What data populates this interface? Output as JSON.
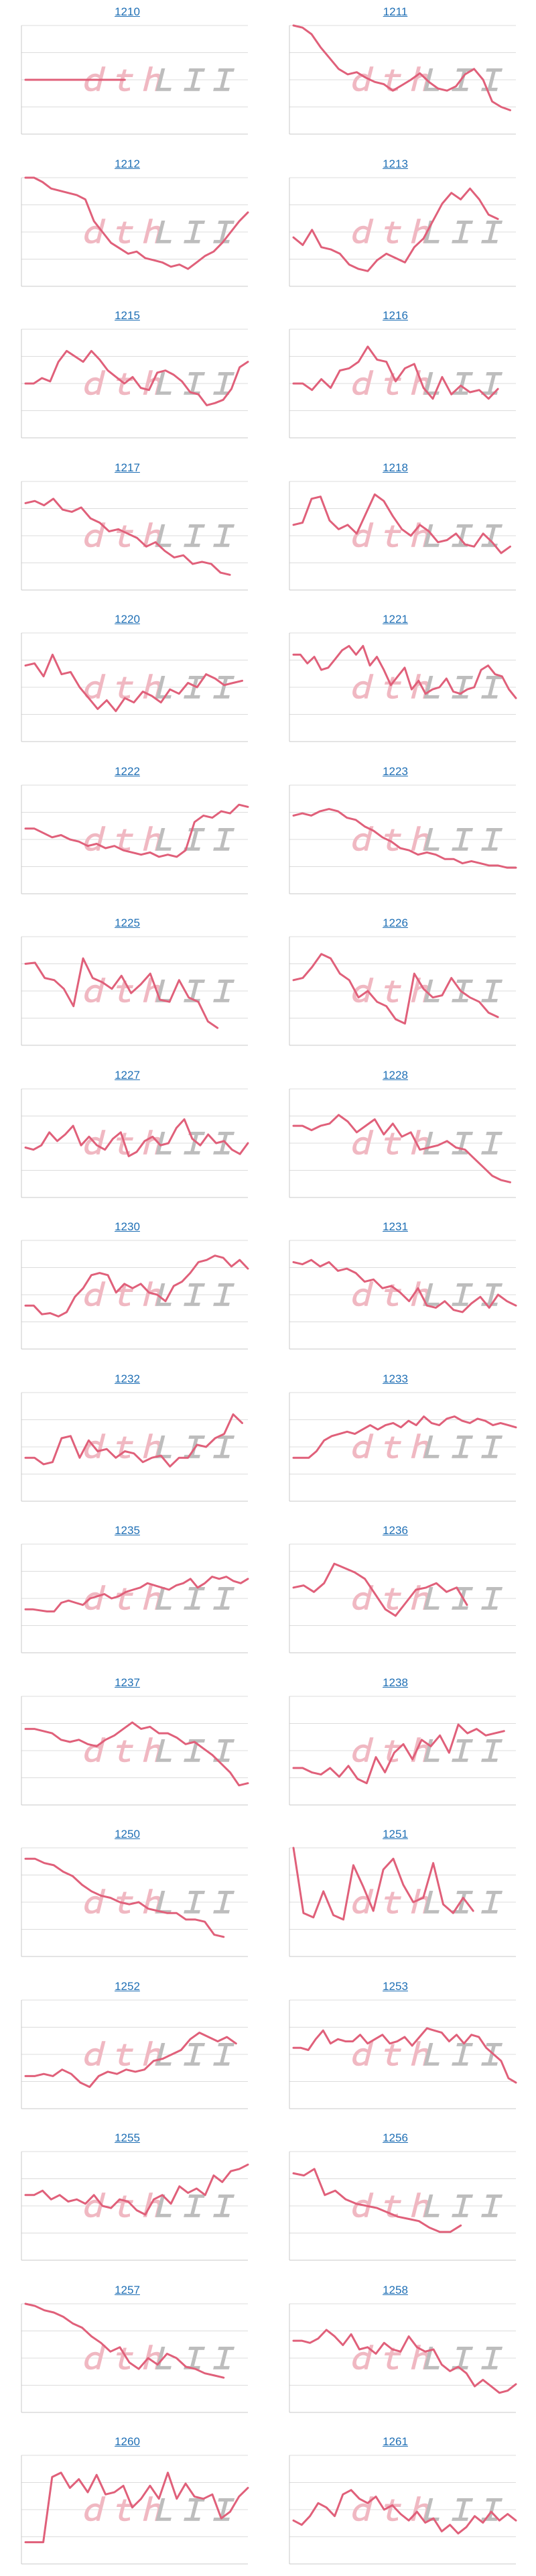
{
  "style": {
    "line_color": "#e0607a",
    "grid_color": "#dcdcdc",
    "axis_color": "#c8c8c8",
    "title_color": "#1f6fb5",
    "watermark_left_color": "#f0b8c2",
    "watermark_right_color": "#bdbdbd"
  },
  "watermark": {
    "left": "ｄｔｈ",
    "right": "ＬＩＩ"
  },
  "chart_data": [
    {
      "type": "line",
      "title": "1210",
      "grid": true,
      "ylim": [
        0,
        100
      ],
      "values": [
        50,
        50,
        50,
        50,
        50,
        50
      ]
    },
    {
      "type": "line",
      "title": "1211",
      "grid": true,
      "ylim": [
        0,
        100
      ],
      "values": [
        100,
        98,
        92,
        80,
        70,
        60,
        55,
        57,
        52,
        48,
        46,
        40,
        45,
        50,
        56,
        48,
        42,
        40,
        44,
        55,
        60,
        50,
        30,
        25,
        22
      ]
    },
    {
      "type": "line",
      "title": "1212",
      "grid": true,
      "ylim": [
        0,
        100
      ],
      "values": [
        100,
        100,
        96,
        90,
        88,
        86,
        84,
        80,
        60,
        50,
        40,
        35,
        30,
        32,
        26,
        24,
        22,
        18,
        20,
        16,
        22,
        28,
        32,
        40,
        50,
        60,
        68
      ]
    },
    {
      "type": "line",
      "title": "1213",
      "grid": true,
      "ylim": [
        0,
        100
      ],
      "values": [
        45,
        38,
        52,
        36,
        34,
        30,
        20,
        16,
        14,
        24,
        30,
        26,
        22,
        36,
        44,
        60,
        76,
        86,
        80,
        90,
        80,
        66,
        62
      ]
    },
    {
      "type": "line",
      "title": "1215",
      "grid": true,
      "ylim": [
        0,
        100
      ],
      "values": [
        50,
        50,
        55,
        52,
        70,
        80,
        75,
        70,
        80,
        72,
        62,
        56,
        50,
        56,
        46,
        44,
        60,
        62,
        58,
        52,
        42,
        40,
        30,
        32,
        35,
        45,
        65,
        70
      ]
    },
    {
      "type": "line",
      "title": "1216",
      "grid": true,
      "ylim": [
        0,
        100
      ],
      "values": [
        50,
        50,
        44,
        54,
        46,
        62,
        64,
        70,
        84,
        72,
        70,
        52,
        64,
        68,
        46,
        36,
        56,
        40,
        48,
        42,
        44,
        36,
        45
      ]
    },
    {
      "type": "line",
      "title": "1217",
      "grid": true,
      "ylim": [
        0,
        100
      ],
      "values": [
        80,
        82,
        78,
        84,
        74,
        72,
        76,
        66,
        62,
        54,
        56,
        52,
        48,
        40,
        44,
        36,
        30,
        32,
        24,
        26,
        24,
        16,
        14
      ]
    },
    {
      "type": "line",
      "title": "1218",
      "grid": true,
      "ylim": [
        0,
        100
      ],
      "values": [
        60,
        62,
        84,
        86,
        64,
        56,
        60,
        52,
        70,
        88,
        82,
        68,
        56,
        50,
        60,
        54,
        44,
        46,
        52,
        42,
        40,
        52,
        44,
        34,
        40
      ]
    },
    {
      "type": "line",
      "title": "1220",
      "grid": true,
      "ylim": [
        0,
        100
      ],
      "values": [
        70,
        72,
        60,
        80,
        62,
        64,
        50,
        40,
        30,
        38,
        28,
        40,
        36,
        46,
        42,
        36,
        48,
        44,
        54,
        50,
        62,
        58,
        52,
        54,
        56
      ]
    },
    {
      "type": "line",
      "title": "1221",
      "grid": true,
      "ylim": [
        0,
        100
      ],
      "values": [
        80,
        80,
        72,
        78,
        66,
        68,
        76,
        84,
        88,
        80,
        88,
        70,
        78,
        66,
        52,
        60,
        68,
        48,
        56,
        44,
        48,
        50,
        58,
        46,
        44,
        48,
        50,
        66,
        70,
        62,
        60,
        48,
        40
      ]
    },
    {
      "type": "line",
      "title": "1222",
      "grid": true,
      "ylim": [
        0,
        100
      ],
      "values": [
        60,
        60,
        56,
        52,
        54,
        50,
        48,
        44,
        46,
        42,
        44,
        40,
        38,
        36,
        38,
        34,
        36,
        34,
        40,
        66,
        72,
        70,
        76,
        74,
        82,
        80
      ]
    },
    {
      "type": "line",
      "title": "1223",
      "grid": true,
      "ylim": [
        0,
        100
      ],
      "values": [
        72,
        74,
        72,
        76,
        78,
        76,
        70,
        68,
        62,
        58,
        52,
        48,
        42,
        40,
        36,
        38,
        36,
        32,
        32,
        28,
        30,
        28,
        26,
        26,
        24,
        24
      ]
    },
    {
      "type": "line",
      "title": "1225",
      "grid": true,
      "ylim": [
        0,
        100
      ],
      "values": [
        75,
        76,
        62,
        60,
        52,
        36,
        80,
        62,
        58,
        52,
        64,
        48,
        56,
        66,
        42,
        40,
        60,
        44,
        40,
        22,
        16
      ]
    },
    {
      "type": "line",
      "title": "1226",
      "grid": true,
      "ylim": [
        0,
        100
      ],
      "values": [
        60,
        62,
        72,
        84,
        80,
        66,
        60,
        44,
        50,
        40,
        36,
        24,
        20,
        66,
        52,
        44,
        46,
        62,
        50,
        44,
        40,
        30,
        26
      ]
    },
    {
      "type": "line",
      "title": "1227",
      "grid": true,
      "ylim": [
        0,
        100
      ],
      "values": [
        46,
        44,
        48,
        60,
        52,
        58,
        66,
        48,
        56,
        48,
        44,
        54,
        60,
        38,
        42,
        52,
        56,
        48,
        50,
        64,
        72,
        54,
        48,
        58,
        50,
        52,
        44,
        40,
        50
      ]
    },
    {
      "type": "line",
      "title": "1228",
      "grid": true,
      "ylim": [
        0,
        100
      ],
      "values": [
        66,
        66,
        62,
        66,
        68,
        76,
        70,
        60,
        66,
        72,
        58,
        68,
        56,
        60,
        44,
        46,
        48,
        52,
        46,
        44,
        36,
        28,
        20,
        16,
        14
      ]
    },
    {
      "type": "line",
      "title": "1230",
      "grid": true,
      "ylim": [
        0,
        100
      ],
      "values": [
        40,
        40,
        32,
        33,
        30,
        34,
        48,
        56,
        68,
        70,
        68,
        52,
        60,
        56,
        60,
        52,
        50,
        44,
        58,
        62,
        70,
        80,
        82,
        86,
        84,
        76,
        82,
        74
      ]
    },
    {
      "type": "line",
      "title": "1231",
      "grid": true,
      "ylim": [
        0,
        100
      ],
      "values": [
        80,
        78,
        82,
        76,
        80,
        72,
        74,
        70,
        62,
        64,
        56,
        58,
        52,
        44,
        56,
        40,
        38,
        44,
        36,
        34,
        42,
        48,
        38,
        50,
        44,
        40
      ]
    },
    {
      "type": "line",
      "title": "1232",
      "grid": true,
      "ylim": [
        0,
        100
      ],
      "values": [
        40,
        40,
        34,
        36,
        58,
        60,
        40,
        56,
        46,
        48,
        40,
        46,
        44,
        36,
        40,
        42,
        32,
        40,
        40,
        52,
        50,
        58,
        62,
        80,
        72
      ]
    },
    {
      "type": "line",
      "title": "1233",
      "grid": true,
      "ylim": [
        0,
        100
      ],
      "values": [
        40,
        40,
        40,
        46,
        56,
        60,
        62,
        64,
        62,
        66,
        70,
        66,
        70,
        72,
        68,
        74,
        70,
        78,
        72,
        70,
        76,
        78,
        74,
        72,
        76,
        74,
        70,
        72,
        70,
        68
      ]
    },
    {
      "type": "line",
      "title": "1235",
      "grid": true,
      "ylim": [
        0,
        100
      ],
      "values": [
        40,
        40,
        39,
        38,
        38,
        46,
        48,
        46,
        44,
        50,
        52,
        54,
        50,
        52,
        56,
        58,
        60,
        64,
        62,
        60,
        58,
        62,
        64,
        68,
        60,
        64,
        70,
        68,
        70,
        66,
        64,
        68
      ]
    },
    {
      "type": "line",
      "title": "1236",
      "grid": true,
      "ylim": [
        0,
        100
      ],
      "values": [
        60,
        62,
        56,
        64,
        82,
        78,
        74,
        68,
        54,
        40,
        34,
        46,
        58,
        60,
        64,
        56,
        60,
        44
      ]
    },
    {
      "type": "line",
      "title": "1237",
      "grid": true,
      "ylim": [
        0,
        100
      ],
      "values": [
        70,
        70,
        68,
        66,
        60,
        58,
        60,
        56,
        54,
        60,
        64,
        70,
        76,
        70,
        72,
        66,
        66,
        62,
        56,
        58,
        52,
        46,
        38,
        30,
        18,
        20
      ]
    },
    {
      "type": "line",
      "title": "1238",
      "grid": true,
      "ylim": [
        0,
        100
      ],
      "values": [
        34,
        34,
        30,
        28,
        34,
        26,
        36,
        24,
        20,
        44,
        30,
        48,
        56,
        42,
        60,
        54,
        64,
        48,
        74,
        66,
        70,
        64,
        66,
        68
      ]
    },
    {
      "type": "line",
      "title": "1250",
      "grid": true,
      "ylim": [
        0,
        100
      ],
      "values": [
        90,
        90,
        86,
        84,
        78,
        74,
        66,
        60,
        56,
        54,
        50,
        48,
        50,
        44,
        42,
        40,
        40,
        34,
        34,
        32,
        20,
        18
      ]
    },
    {
      "type": "line",
      "title": "1251",
      "grid": true,
      "ylim": [
        0,
        100
      ],
      "values": [
        100,
        40,
        36,
        60,
        38,
        34,
        84,
        64,
        42,
        80,
        90,
        66,
        50,
        54,
        86,
        48,
        40,
        54,
        42
      ]
    },
    {
      "type": "line",
      "title": "1252",
      "grid": true,
      "ylim": [
        0,
        100
      ],
      "values": [
        30,
        30,
        32,
        30,
        36,
        32,
        24,
        20,
        30,
        34,
        32,
        36,
        34,
        36,
        44,
        46,
        50,
        54,
        64,
        70,
        66,
        62,
        66,
        60
      ]
    },
    {
      "type": "line",
      "title": "1253",
      "grid": true,
      "ylim": [
        0,
        100
      ],
      "values": [
        56,
        56,
        54,
        64,
        72,
        60,
        64,
        62,
        62,
        68,
        60,
        64,
        68,
        60,
        62,
        66,
        58,
        66,
        74,
        72,
        70,
        62,
        68,
        60,
        68,
        66,
        56,
        50,
        44,
        28,
        24
      ]
    },
    {
      "type": "line",
      "title": "1255",
      "grid": true,
      "ylim": [
        0,
        100
      ],
      "values": [
        60,
        60,
        64,
        56,
        60,
        54,
        56,
        52,
        60,
        50,
        48,
        56,
        54,
        46,
        42,
        56,
        60,
        52,
        68,
        62,
        66,
        60,
        78,
        72,
        82,
        84,
        88
      ]
    },
    {
      "type": "line",
      "title": "1256",
      "grid": true,
      "ylim": [
        0,
        100
      ],
      "values": [
        80,
        78,
        84,
        60,
        64,
        56,
        52,
        50,
        48,
        44,
        40,
        38,
        36,
        30,
        26,
        26,
        32
      ]
    },
    {
      "type": "line",
      "title": "1257",
      "grid": true,
      "ylim": [
        0,
        100
      ],
      "values": [
        100,
        98,
        94,
        92,
        88,
        82,
        78,
        70,
        64,
        56,
        60,
        46,
        40,
        50,
        44,
        54,
        50,
        42,
        40,
        36,
        34,
        32
      ]
    },
    {
      "type": "line",
      "title": "1258",
      "grid": true,
      "ylim": [
        0,
        100
      ],
      "values": [
        66,
        66,
        64,
        68,
        76,
        70,
        62,
        72,
        58,
        60,
        54,
        64,
        58,
        56,
        70,
        60,
        56,
        58,
        44,
        38,
        42,
        36,
        24,
        30,
        24,
        18,
        20,
        26
      ]
    },
    {
      "type": "line",
      "title": "1260",
      "grid": true,
      "ylim": [
        0,
        100
      ],
      "values": [
        20,
        20,
        20,
        80,
        84,
        70,
        78,
        66,
        82,
        64,
        66,
        72,
        52,
        60,
        72,
        60,
        84,
        60,
        74,
        62,
        60,
        64,
        42,
        48,
        62,
        70
      ]
    },
    {
      "type": "line",
      "title": "1261",
      "grid": true,
      "ylim": [
        0,
        100
      ],
      "values": [
        40,
        36,
        44,
        56,
        52,
        44,
        64,
        68,
        60,
        56,
        62,
        50,
        54,
        46,
        40,
        48,
        38,
        42,
        30,
        36,
        28,
        34,
        44,
        38,
        48,
        40,
        46,
        40
      ]
    }
  ]
}
